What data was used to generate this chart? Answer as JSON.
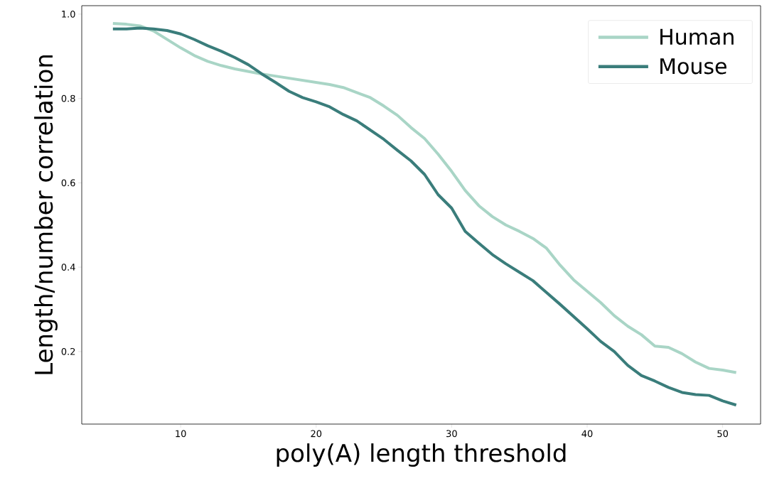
{
  "chart_data": {
    "type": "line",
    "xlabel": "poly(A) length threshold",
    "ylabel": "Length/number correlation",
    "x": [
      5,
      6,
      7,
      8,
      9,
      10,
      11,
      12,
      13,
      14,
      15,
      16,
      17,
      18,
      19,
      20,
      21,
      22,
      23,
      24,
      25,
      26,
      27,
      28,
      29,
      30,
      31,
      32,
      33,
      34,
      35,
      36,
      37,
      38,
      39,
      40,
      41,
      42,
      43,
      44,
      45,
      46,
      47,
      48,
      49,
      50,
      51
    ],
    "series": [
      {
        "name": "Human",
        "color": "#a9d5c6",
        "values": [
          0.978,
          0.976,
          0.972,
          0.96,
          0.94,
          0.92,
          0.902,
          0.888,
          0.878,
          0.87,
          0.864,
          0.858,
          0.853,
          0.848,
          0.843,
          0.838,
          0.833,
          0.826,
          0.814,
          0.802,
          0.782,
          0.76,
          0.731,
          0.705,
          0.668,
          0.627,
          0.582,
          0.546,
          0.52,
          0.5,
          0.485,
          0.468,
          0.445,
          0.405,
          0.37,
          0.343,
          0.316,
          0.285,
          0.26,
          0.24,
          0.213,
          0.21,
          0.195,
          0.175,
          0.16,
          0.156,
          0.15
        ]
      },
      {
        "name": "Mouse",
        "color": "#3a7d7b",
        "values": [
          0.965,
          0.965,
          0.967,
          0.965,
          0.961,
          0.953,
          0.94,
          0.925,
          0.912,
          0.897,
          0.88,
          0.858,
          0.838,
          0.817,
          0.802,
          0.792,
          0.78,
          0.762,
          0.747,
          0.725,
          0.703,
          0.677,
          0.652,
          0.62,
          0.572,
          0.54,
          0.485,
          0.457,
          0.43,
          0.408,
          0.388,
          0.368,
          0.34,
          0.312,
          0.283,
          0.254,
          0.224,
          0.2,
          0.167,
          0.143,
          0.13,
          0.115,
          0.103,
          0.098,
          0.096,
          0.083,
          0.073
        ]
      }
    ],
    "xlim": [
      2.7,
      52.8
    ],
    "ylim": [
      0.028,
      1.02
    ],
    "xticks": [
      10,
      20,
      30,
      40,
      50
    ],
    "yticks": [
      {
        "value": 0.2,
        "label": "0.2"
      },
      {
        "value": 0.4,
        "label": "0.4"
      },
      {
        "value": 0.6,
        "label": "0.6"
      },
      {
        "value": 0.8,
        "label": "0.8"
      },
      {
        "value": 1.0,
        "label": "1.0"
      }
    ],
    "legend": "top right",
    "grid": false,
    "marker": "none",
    "line_style": "solid"
  }
}
